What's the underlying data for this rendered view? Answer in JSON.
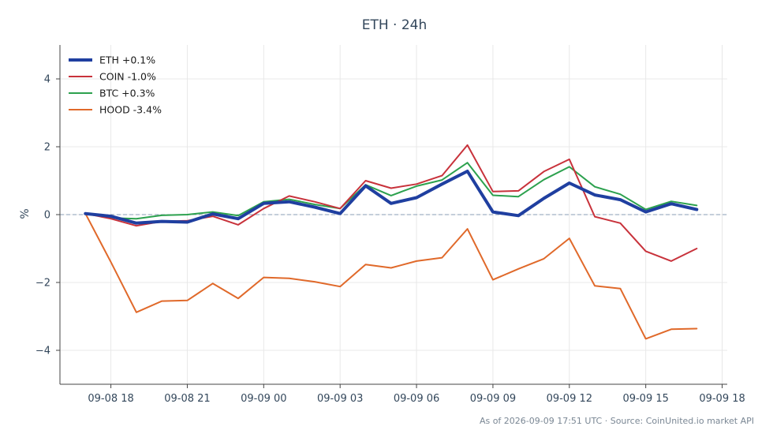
{
  "chart_data": {
    "type": "line",
    "title": "ETH · 24h",
    "ylabel": "%",
    "xlabel": "",
    "ylim": [
      -5,
      5
    ],
    "yticks": [
      -4,
      -2,
      0,
      2,
      4
    ],
    "ytick_labels": [
      "−4",
      "−2",
      "0",
      "2",
      "4"
    ],
    "xlim": [
      -1.0,
      25.2
    ],
    "xtick_positions": [
      1,
      4,
      7,
      10,
      13,
      16,
      19,
      22,
      25
    ],
    "xtick_labels": [
      "09-08 18",
      "09-08 21",
      "09-09 00",
      "09-09 03",
      "09-09 06",
      "09-09 09",
      "09-09 12",
      "09-09 15",
      "09-09 18"
    ],
    "grid": true,
    "legend_position": "top-left",
    "reference_line": 0,
    "x": [
      0,
      1,
      2,
      3,
      4,
      5,
      6,
      7,
      8,
      9,
      10,
      11,
      12,
      13,
      14,
      15,
      16,
      17,
      18,
      19,
      20,
      21,
      22,
      23,
      24
    ],
    "series": [
      {
        "name": "ETH +0.1%",
        "color": "#1f3fa0",
        "width": 4,
        "values": [
          0.03,
          -0.05,
          -0.25,
          -0.2,
          -0.22,
          0.02,
          -0.12,
          0.33,
          0.38,
          0.22,
          0.03,
          0.85,
          0.33,
          0.5,
          0.9,
          1.28,
          0.08,
          -0.03,
          0.48,
          0.93,
          0.58,
          0.44,
          0.08,
          0.32,
          0.15
        ]
      },
      {
        "name": "COIN -1.0%",
        "color": "#c8323b",
        "width": 2,
        "values": [
          0.03,
          -0.12,
          -0.33,
          -0.2,
          -0.18,
          -0.05,
          -0.3,
          0.18,
          0.55,
          0.38,
          0.18,
          1.0,
          0.78,
          0.9,
          1.15,
          2.05,
          0.68,
          0.7,
          1.27,
          1.63,
          -0.06,
          -0.25,
          -1.08,
          -1.37,
          -1.0
        ]
      },
      {
        "name": "BTC +0.3%",
        "color": "#2ca14e",
        "width": 2,
        "values": [
          0.03,
          -0.1,
          -0.12,
          -0.02,
          0.0,
          0.08,
          -0.03,
          0.38,
          0.45,
          0.3,
          0.18,
          0.88,
          0.56,
          0.84,
          1.02,
          1.53,
          0.57,
          0.53,
          1.03,
          1.41,
          0.82,
          0.6,
          0.15,
          0.39,
          0.27
        ]
      },
      {
        "name": "HOOD -3.4%",
        "color": "#e0692a",
        "width": 2,
        "values": [
          0.03,
          -1.4,
          -2.88,
          -2.55,
          -2.53,
          -2.03,
          -2.47,
          -1.85,
          -1.88,
          -1.98,
          -2.12,
          -1.47,
          -1.57,
          -1.37,
          -1.27,
          -0.42,
          -1.92,
          -1.6,
          -1.3,
          -0.7,
          -2.1,
          -2.18,
          -3.66,
          -3.38,
          -3.36
        ]
      }
    ]
  },
  "footer": "As of 2026-09-09 17:51 UTC · Source: CoinUnited.io market API"
}
